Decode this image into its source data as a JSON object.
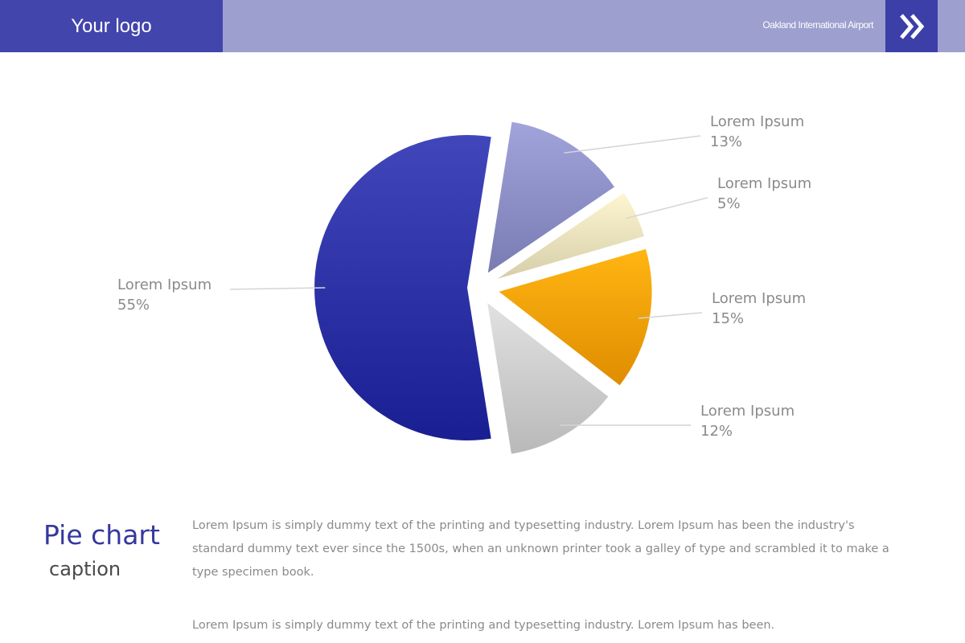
{
  "header": {
    "logo_text": "Your logo",
    "title": "Oakland International Airport",
    "next_icon": "double-chevron-right-icon",
    "colors": {
      "bar": "#9d9fcf",
      "logo_bg": "#4245ac",
      "button_bg": "#3c3fa8"
    }
  },
  "chart_data": {
    "type": "pie",
    "title": "",
    "slices": [
      {
        "label": "Lorem Ipsum",
        "value": 55,
        "value_text": "55%",
        "color": "#2f35a8"
      },
      {
        "label": "Lorem Ipsum",
        "value": 13,
        "value_text": "13%",
        "color": "#8f91c9"
      },
      {
        "label": "Lorem Ipsum",
        "value": 5,
        "value_text": "5%",
        "color": "#ebe4bf"
      },
      {
        "label": "Lorem Ipsum",
        "value": 15,
        "value_text": "15%",
        "color": "#f5a300"
      },
      {
        "label": "Lorem Ipsum",
        "value": 12,
        "value_text": "12%",
        "color": "#cfcfcf"
      }
    ]
  },
  "caption": {
    "title": "Pie chart",
    "subtitle": "caption",
    "paragraph1": "Lorem Ipsum is simply dummy text of the printing and typesetting industry. Lorem Ipsum has been the industry's standard dummy text ever since the 1500s, when an unknown printer took a galley of type and scrambled it to make a type specimen book.",
    "paragraph2": "Lorem Ipsum is simply dummy text of the printing and typesetting industry. Lorem Ipsum has been."
  }
}
